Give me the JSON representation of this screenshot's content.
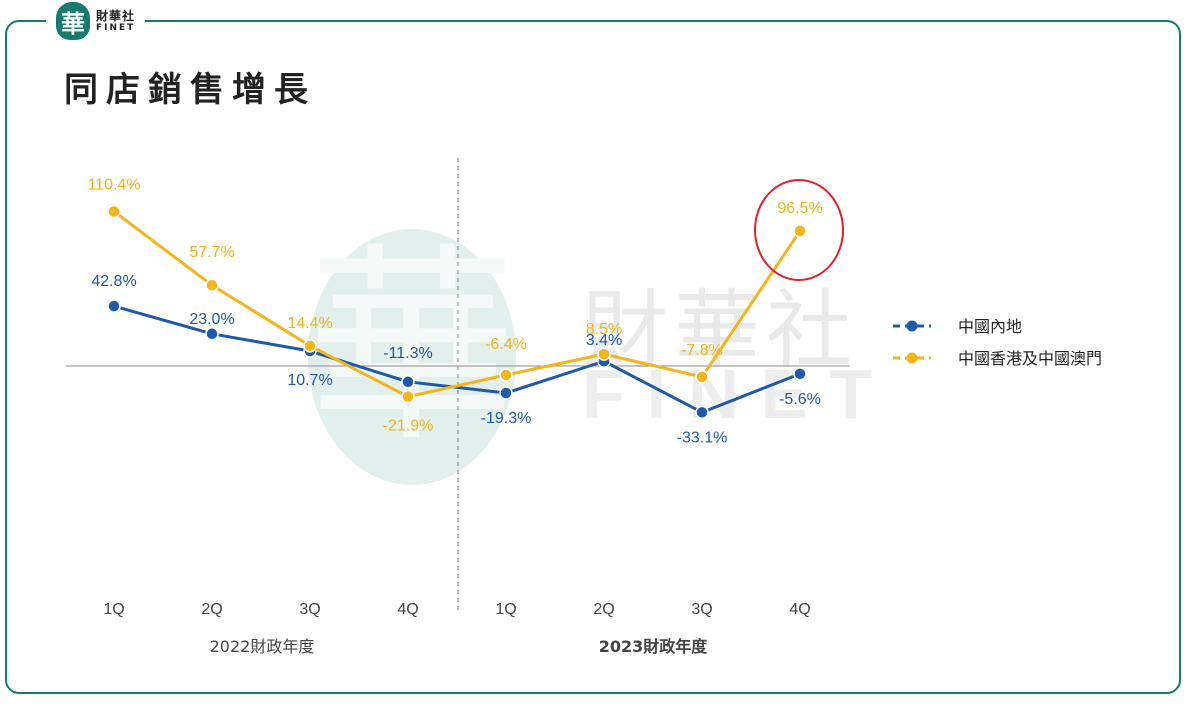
{
  "header": {
    "logo_glyph": "華",
    "logo_cn": "財華社",
    "logo_en": "FINET",
    "title": "同店銷售增長"
  },
  "watermark": {
    "cn": "財華社",
    "en": "FINET"
  },
  "colors": {
    "mainland": "#1f5aa6",
    "hk_macau": "#f2b51b",
    "frame": "#167a6c",
    "highlight": "#e0202a"
  },
  "chart_data": {
    "type": "line",
    "categories": [
      "1Q",
      "2Q",
      "3Q",
      "4Q",
      "1Q",
      "2Q",
      "3Q",
      "4Q"
    ],
    "groups": [
      {
        "label": "2022財政年度",
        "bold": false
      },
      {
        "label": "2023財政年度",
        "bold": true
      }
    ],
    "series": [
      {
        "name": "中國內地",
        "color": "#1f5aa6",
        "values": [
          42.8,
          23.0,
          10.7,
          -11.3,
          -19.3,
          3.4,
          -33.1,
          -5.6
        ],
        "labels": [
          "42.8%",
          "23.0%",
          "10.7%",
          "-11.3%",
          "-19.3%",
          "3.4%",
          "-33.1%",
          "-5.6%"
        ]
      },
      {
        "name": "中國香港及中國澳門",
        "color": "#f2b51b",
        "values": [
          110.4,
          57.7,
          14.4,
          -21.9,
          -6.4,
          8.5,
          -7.8,
          96.5
        ],
        "labels": [
          "110.4%",
          "57.7%",
          "14.4%",
          "-21.9%",
          "-6.4%",
          "8.5%",
          "-7.8%",
          "96.5%"
        ]
      }
    ],
    "highlight": {
      "series": 1,
      "index": 7
    },
    "legend": "right"
  }
}
